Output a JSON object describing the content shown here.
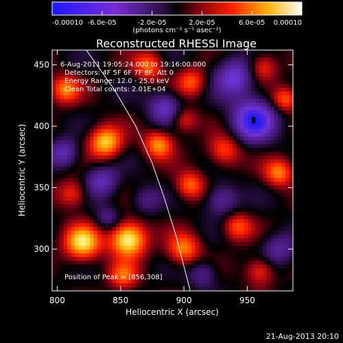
{
  "chart_data": {
    "type": "heatmap",
    "title": "Reconstructed RHESSI Image",
    "xlabel": "Heliocentric X (arcsec)",
    "ylabel": "Heliocentric Y (arcsec)",
    "xlim": [
      796,
      986
    ],
    "ylim": [
      266,
      462
    ],
    "x_ticks": [
      "800",
      "850",
      "900",
      "950"
    ],
    "y_ticks": [
      "300",
      "350",
      "400",
      "450"
    ],
    "colorbar": {
      "units": "(photons cm⁻² s⁻¹ asec⁻²)",
      "range": [
        -0.0001,
        0.0001
      ],
      "tick_labels": [
        "-0.00010",
        "-6.0e-05",
        "-2.0e-05",
        "2.0e-05",
        "6.0e-05",
        "0.00010"
      ]
    },
    "annotations": {
      "time_range": "6-Aug-2011 19:05:24.000 to 19:16:00.000",
      "detectors": "Detectors: 4F 5F 6F 7F 8F, Att 0",
      "energy": "Energy Range: 12.0 - 25.0 keV",
      "clean": "Clean     Total counts: 2.01E+04",
      "peak": "Position of Peak = [856,308]"
    },
    "peak": [
      856,
      308
    ],
    "limb_curve": [
      [
        823,
        462
      ],
      [
        845,
        430
      ],
      [
        862,
        400
      ],
      [
        875,
        370
      ],
      [
        885,
        340
      ],
      [
        894,
        310
      ],
      [
        905,
        266
      ]
    ],
    "blobs": [
      {
        "x": 856,
        "y": 308,
        "a": 1.0,
        "s": 10
      },
      {
        "x": 820,
        "y": 305,
        "a": 0.85,
        "s": 10
      },
      {
        "x": 838,
        "y": 387,
        "a": 0.8,
        "s": 9
      },
      {
        "x": 880,
        "y": 385,
        "a": 0.65,
        "s": 8
      },
      {
        "x": 806,
        "y": 430,
        "a": 0.6,
        "s": 8
      },
      {
        "x": 872,
        "y": 449,
        "a": 0.55,
        "s": 8
      },
      {
        "x": 906,
        "y": 436,
        "a": 0.5,
        "s": 8
      },
      {
        "x": 962,
        "y": 448,
        "a": 0.45,
        "s": 8
      },
      {
        "x": 980,
        "y": 422,
        "a": 0.55,
        "s": 7
      },
      {
        "x": 932,
        "y": 380,
        "a": 0.5,
        "s": 9
      },
      {
        "x": 905,
        "y": 352,
        "a": 0.55,
        "s": 8
      },
      {
        "x": 975,
        "y": 362,
        "a": 0.6,
        "s": 8
      },
      {
        "x": 942,
        "y": 318,
        "a": 0.5,
        "s": 8
      },
      {
        "x": 900,
        "y": 300,
        "a": 0.6,
        "s": 9
      },
      {
        "x": 852,
        "y": 278,
        "a": 0.5,
        "s": 8
      },
      {
        "x": 960,
        "y": 282,
        "a": 0.45,
        "s": 8
      },
      {
        "x": 812,
        "y": 345,
        "a": 0.45,
        "s": 8
      },
      {
        "x": 900,
        "y": 405,
        "a": 0.4,
        "s": 7
      },
      {
        "x": 955,
        "y": 405,
        "a": -0.85,
        "s": 12
      },
      {
        "x": 940,
        "y": 440,
        "a": -0.6,
        "s": 11
      },
      {
        "x": 885,
        "y": 415,
        "a": -0.55,
        "s": 9
      },
      {
        "x": 835,
        "y": 355,
        "a": -0.5,
        "s": 9
      },
      {
        "x": 930,
        "y": 340,
        "a": -0.45,
        "s": 9
      },
      {
        "x": 805,
        "y": 378,
        "a": -0.5,
        "s": 8
      },
      {
        "x": 840,
        "y": 325,
        "a": -0.35,
        "s": 7
      },
      {
        "x": 975,
        "y": 300,
        "a": -0.4,
        "s": 9
      },
      {
        "x": 915,
        "y": 280,
        "a": -0.35,
        "s": 8
      },
      {
        "x": 870,
        "y": 340,
        "a": -0.3,
        "s": 8
      }
    ]
  },
  "footer": {
    "date": "21-Aug-2013 20:10"
  }
}
